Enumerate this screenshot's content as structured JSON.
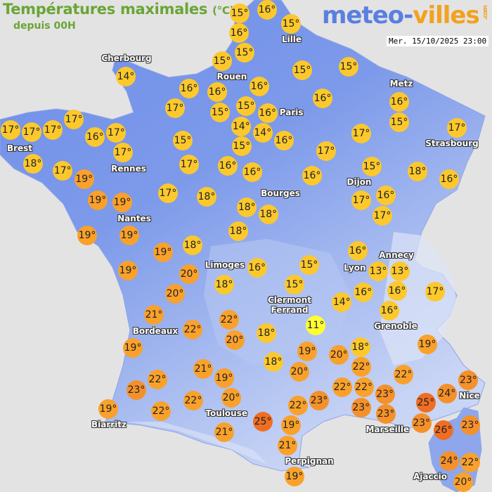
{
  "header": {
    "title": "Températures maximales",
    "unit": "(°C)",
    "subtitle": "depuis 00H",
    "logo": {
      "part1": "meteo-",
      "part2": "villes",
      "suffix": ".com"
    },
    "datetime": "Mer. 15/10/2025 23:00"
  },
  "colors": {
    "cool": "#ffff33",
    "mild": "#fcc82c",
    "warm": "#f9a12b",
    "hot": "#f5912a",
    "veryhot": "#ef6e22",
    "land": "#6f8ee8",
    "land_light": "#b5c6f2",
    "sea": "#e3e3e3",
    "title": "#6aa534"
  },
  "temperatures": [
    15,
    16,
    15,
    16,
    15,
    14,
    15,
    15,
    15,
    16,
    17,
    16,
    16,
    15,
    15,
    16,
    14,
    14,
    15,
    16,
    16,
    16,
    15,
    17,
    17,
    17,
    17,
    17,
    17,
    17,
    16,
    17,
    18,
    17,
    17,
    19,
    15,
    17,
    16,
    16,
    16,
    15,
    18,
    16,
    17,
    18,
    19,
    19,
    17,
    16,
    17,
    18,
    18,
    19,
    19,
    18,
    18,
    19,
    19,
    16,
    13,
    16,
    13,
    16,
    17,
    16,
    14,
    15,
    16,
    20,
    18,
    20,
    15,
    21,
    22,
    22,
    20,
    18,
    11,
    19,
    19,
    20,
    18,
    20,
    18,
    22,
    22,
    22,
    19,
    21,
    22,
    19,
    23,
    22,
    20,
    22,
    23,
    23,
    23,
    23,
    22,
    23,
    25,
    24,
    23,
    23,
    26,
    19,
    22,
    25,
    21,
    19,
    21,
    19,
    24,
    22,
    20
  ],
  "cities": [
    "Cherbourg",
    "Lille",
    "Rouen",
    "Paris",
    "Metz",
    "Strasbourg",
    "Brest",
    "Rennes",
    "Dijon",
    "Bourges",
    "Nantes",
    "Limoges",
    "Lyon",
    "Annecy",
    "Clermont\nFerrand",
    "Grenoble",
    "Bordeaux",
    "Nice",
    "Toulouse",
    "Biarritz",
    "Marseille",
    "Perpignan",
    "Ajaccio"
  ]
}
